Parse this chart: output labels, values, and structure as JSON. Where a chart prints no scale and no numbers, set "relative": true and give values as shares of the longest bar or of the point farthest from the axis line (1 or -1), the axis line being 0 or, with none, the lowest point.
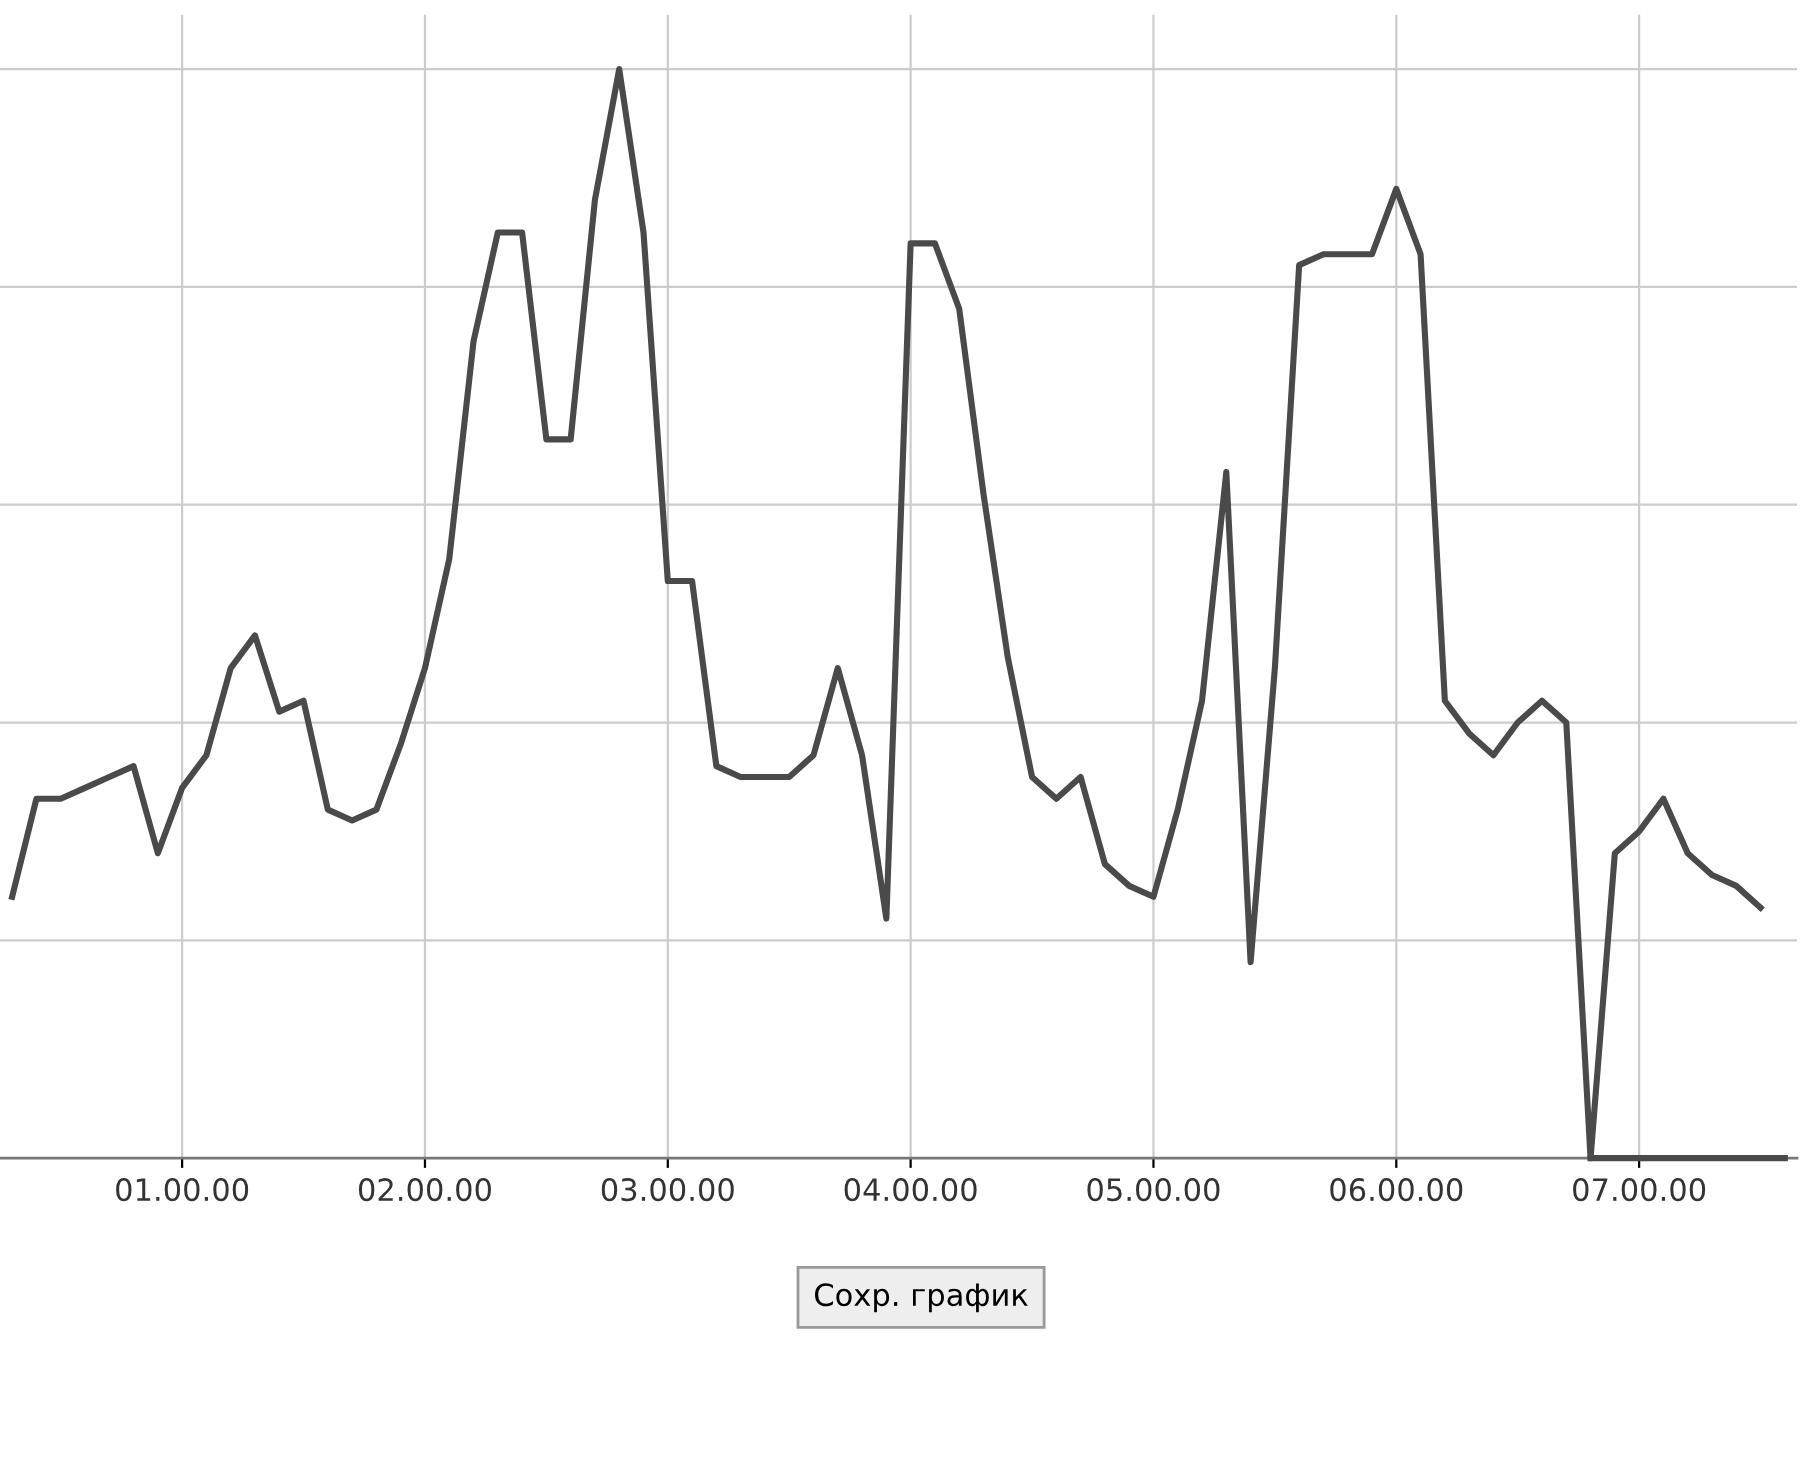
{
  "chart_data": {
    "type": "line",
    "relative": true,
    "grid": true,
    "categories": [
      null,
      null,
      null,
      null,
      null,
      null,
      null,
      "01.00.00",
      null,
      null,
      null,
      null,
      null,
      null,
      null,
      null,
      null,
      "02.00.00",
      null,
      null,
      null,
      null,
      null,
      null,
      null,
      null,
      null,
      "03.00.00",
      null,
      null,
      null,
      null,
      null,
      null,
      null,
      null,
      null,
      "04.00.00",
      null,
      null,
      null,
      null,
      null,
      null,
      null,
      null,
      null,
      "05.00.00",
      null,
      null,
      null,
      null,
      null,
      null,
      null,
      null,
      null,
      "06.00.00",
      null,
      null,
      null,
      null,
      null,
      null,
      null,
      null,
      null,
      "07.00.00",
      null,
      null,
      null,
      null,
      null,
      null
    ],
    "annotations": [
      "Сохр. график"
    ],
    "series": [
      {
        "color": "#4a4a4a",
        "values": [
          0.24,
          0.33,
          0.33,
          0.34,
          0.35,
          0.36,
          0.28,
          0.34,
          0.37,
          0.45,
          0.48,
          0.41,
          0.42,
          0.32,
          0.31,
          0.32,
          0.38,
          0.45,
          0.55,
          0.75,
          0.85,
          0.85,
          0.66,
          0.66,
          0.88,
          1.0,
          0.85,
          0.53,
          0.53,
          0.36,
          0.35,
          0.35,
          0.35,
          0.37,
          0.45,
          0.37,
          0.22,
          0.84,
          0.84,
          0.78,
          0.61,
          0.46,
          0.35,
          0.33,
          0.35,
          0.27,
          0.25,
          0.24,
          0.32,
          0.42,
          0.63,
          0.18,
          0.45,
          0.82,
          0.83,
          0.83,
          0.83,
          0.89,
          0.83,
          0.42,
          0.39,
          0.37,
          0.4,
          0.42,
          0.4,
          0.0,
          0.28,
          0.3,
          0.33,
          0.28,
          0.26,
          0.25,
          0.23,
          null
        ]
      },
      {
        "color": "#4a4a4a",
        "values": [
          null,
          null,
          null,
          null,
          null,
          null,
          null,
          null,
          null,
          null,
          null,
          null,
          null,
          null,
          null,
          null,
          null,
          null,
          null,
          null,
          null,
          null,
          null,
          null,
          null,
          null,
          null,
          null,
          null,
          null,
          null,
          null,
          null,
          null,
          null,
          null,
          null,
          null,
          null,
          null,
          null,
          null,
          null,
          null,
          null,
          null,
          null,
          null,
          null,
          null,
          null,
          null,
          null,
          null,
          null,
          null,
          null,
          null,
          null,
          null,
          null,
          null,
          null,
          null,
          null,
          0.0,
          0.0,
          0.0,
          0.0,
          0.0,
          0.0,
          0.0,
          0.0,
          0.0
        ]
      }
    ]
  }
}
